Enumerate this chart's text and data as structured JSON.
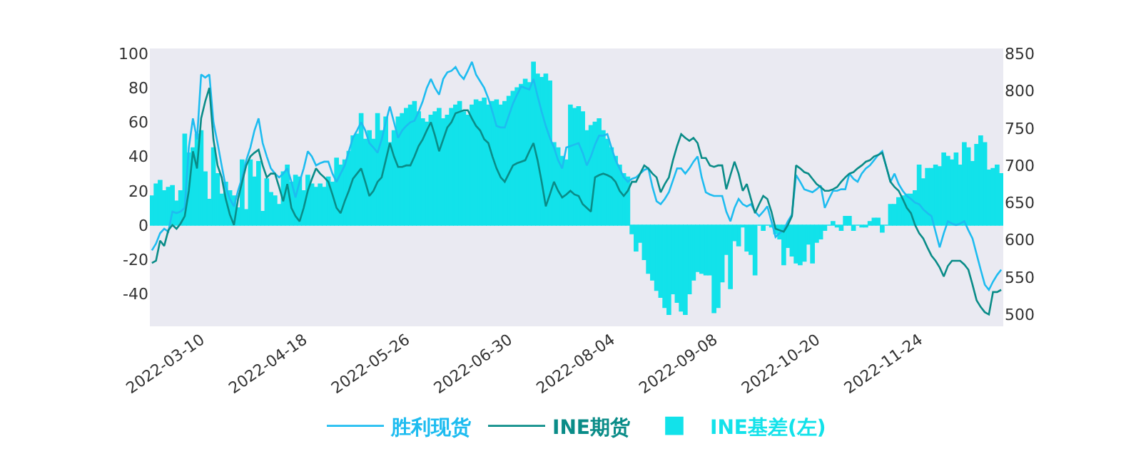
{
  "chart_data": {
    "type": "bar",
    "categories": [
      null,
      null,
      null,
      null,
      null,
      null,
      null,
      null,
      null,
      null,
      null,
      null,
      "2022-03-10",
      null,
      null,
      null,
      null,
      null,
      null,
      null,
      null,
      null,
      null,
      null,
      null,
      null,
      null,
      null,
      null,
      null,
      null,
      null,
      null,
      null,
      null,
      null,
      null,
      "2022-04-18",
      null,
      null,
      null,
      null,
      null,
      null,
      null,
      null,
      null,
      null,
      null,
      null,
      null,
      null,
      null,
      null,
      null,
      null,
      null,
      null,
      null,
      null,
      null,
      null,
      "2022-05-26",
      null,
      null,
      null,
      null,
      null,
      null,
      null,
      null,
      null,
      null,
      null,
      null,
      null,
      null,
      null,
      null,
      null,
      null,
      null,
      null,
      null,
      null,
      null,
      null,
      "2022-06-30",
      null,
      null,
      null,
      null,
      null,
      null,
      null,
      null,
      null,
      null,
      null,
      null,
      null,
      null,
      null,
      null,
      null,
      null,
      null,
      null,
      null,
      null,
      null,
      null,
      "2022-08-04",
      null,
      null,
      null,
      null,
      null,
      null,
      null,
      null,
      null,
      null,
      null,
      null,
      null,
      null,
      null,
      null,
      null,
      null,
      null,
      null,
      null,
      null,
      null,
      null,
      "2022-09-08",
      null,
      null,
      null,
      null,
      null,
      null,
      null,
      null,
      null,
      null,
      null,
      null,
      null,
      null,
      null,
      null,
      null,
      null,
      null,
      null,
      null,
      null,
      null,
      null,
      "2022-10-20",
      null,
      null,
      null,
      null,
      null,
      null,
      null,
      null,
      null,
      null,
      null,
      null,
      null,
      null,
      null,
      null,
      null,
      null,
      null,
      null,
      null,
      null,
      null,
      null,
      "2022-11-24",
      null,
      null,
      null,
      null,
      null,
      null,
      null,
      null,
      null,
      null,
      null,
      null,
      null,
      null,
      null,
      null,
      null,
      null,
      null,
      null
    ],
    "series": [
      {
        "name": "胜利现货",
        "type": "line",
        "axis": "y2",
        "color": "#1ebcf0",
        "values": [
          586,
          595,
          609,
          615,
          611,
          638,
          636,
          638,
          643,
          724,
          763,
          735,
          822,
          818,
          822,
          758,
          730,
          700,
          671,
          655,
          645,
          666,
          684,
          707,
          724,
          747,
          763,
          730,
          712,
          696,
          689,
          684,
          689,
          696,
          678,
          657,
          678,
          696,
          719,
          712,
          700,
          703,
          705,
          705,
          689,
          678,
          689,
          700,
          719,
          737,
          747,
          758,
          747,
          730,
          724,
          717,
          735,
          758,
          779,
          758,
          737,
          747,
          753,
          758,
          760,
          772,
          786,
          804,
          816,
          804,
          795,
          816,
          825,
          827,
          832,
          822,
          816,
          827,
          839,
          822,
          813,
          804,
          790,
          772,
          753,
          751,
          751,
          767,
          783,
          795,
          806,
          804,
          802,
          816,
          793,
          772,
          753,
          737,
          724,
          707,
          696,
          724,
          726,
          728,
          730,
          717,
          700,
          712,
          728,
          740,
          740,
          742,
          724,
          707,
          696,
          684,
          678,
          682,
          684,
          689,
          694,
          696,
          671,
          652,
          648,
          655,
          664,
          680,
          696,
          696,
          689,
          696,
          705,
          712,
          684,
          664,
          661,
          659,
          659,
          659,
          638,
          625,
          643,
          655,
          648,
          645,
          648,
          638,
          632,
          638,
          645,
          625,
          604,
          609,
          613,
          625,
          634,
          687,
          678,
          668,
          666,
          664,
          668,
          673,
          643,
          655,
          666,
          666,
          668,
          668,
          689,
          682,
          678,
          689,
          696,
          700,
          707,
          714,
          719,
          698,
          678,
          689,
          675,
          666,
          659,
          655,
          650,
          648,
          641,
          636,
          632,
          611,
          590,
          609,
          625,
          622,
          620,
          622,
          625,
          613,
          602,
          581,
          560,
          540,
          533,
          544,
          553,
          560
        ]
      },
      {
        "name": "INE期货",
        "type": "line",
        "axis": "y2",
        "color": "#0a8c88",
        "values": [
          569,
          572,
          599,
          592,
          613,
          620,
          615,
          622,
          632,
          666,
          719,
          696,
          763,
          786,
          804,
          735,
          700,
          684,
          655,
          634,
          620,
          655,
          678,
          700,
          712,
          717,
          721,
          700,
          684,
          689,
          689,
          671,
          652,
          675,
          643,
          632,
          625,
          643,
          666,
          682,
          696,
          689,
          684,
          678,
          661,
          643,
          636,
          652,
          666,
          682,
          689,
          696,
          678,
          659,
          666,
          678,
          684,
          707,
          730,
          712,
          698,
          698,
          700,
          700,
          712,
          726,
          735,
          747,
          758,
          740,
          719,
          735,
          751,
          758,
          770,
          772,
          774,
          774,
          763,
          753,
          747,
          735,
          730,
          712,
          696,
          684,
          678,
          689,
          700,
          703,
          705,
          707,
          719,
          730,
          707,
          678,
          645,
          661,
          678,
          666,
          657,
          661,
          666,
          661,
          659,
          648,
          643,
          638,
          684,
          687,
          689,
          687,
          684,
          678,
          666,
          659,
          666,
          678,
          678,
          689,
          700,
          696,
          689,
          684,
          664,
          675,
          684,
          707,
          726,
          742,
          737,
          733,
          737,
          730,
          710,
          710,
          700,
          698,
          700,
          700,
          668,
          687,
          705,
          689,
          666,
          675,
          655,
          636,
          648,
          659,
          655,
          638,
          615,
          613,
          611,
          620,
          632,
          700,
          696,
          691,
          689,
          682,
          675,
          671,
          666,
          666,
          668,
          671,
          678,
          684,
          689,
          691,
          696,
          700,
          705,
          707,
          712,
          714,
          717,
          698,
          678,
          671,
          666,
          655,
          643,
          636,
          620,
          609,
          602,
          590,
          579,
          572,
          563,
          551,
          565,
          572,
          572,
          572,
          567,
          560,
          540,
          519,
          510,
          503,
          500,
          530,
          530,
          533
        ]
      },
      {
        "name": "INE基差(左)",
        "type": "bar",
        "color": "#12e2ea",
        "values": [
          17,
          24,
          26,
          20,
          22,
          23,
          14,
          20,
          53,
          42,
          45,
          53,
          55,
          31,
          15,
          45,
          30,
          18,
          25,
          20,
          17,
          10,
          38,
          9,
          38,
          28,
          37,
          8,
          27,
          19,
          17,
          12,
          31,
          35,
          25,
          29,
          28,
          20,
          29,
          24,
          22,
          24,
          22,
          28,
          25,
          39,
          35,
          38,
          43,
          52,
          53,
          65,
          50,
          55,
          50,
          65,
          55,
          63,
          48,
          55,
          63,
          65,
          68,
          70,
          72,
          66,
          62,
          60,
          64,
          66,
          68,
          62,
          64,
          68,
          70,
          72,
          66,
          64,
          70,
          73,
          72,
          74,
          70,
          72,
          73,
          70,
          72,
          75,
          78,
          80,
          82,
          85,
          83,
          95,
          88,
          86,
          88,
          84,
          48,
          45,
          40,
          38,
          70,
          68,
          69,
          66,
          55,
          58,
          60,
          62,
          55,
          50,
          45,
          40,
          35,
          30,
          28,
          -5,
          -15,
          -10,
          -20,
          -28,
          -32,
          -38,
          -42,
          -48,
          -52,
          -40,
          -45,
          -50,
          -52,
          -40,
          -32,
          -27,
          -28,
          -29,
          -29,
          -51,
          -48,
          -33,
          -17,
          -37,
          -9,
          -12,
          -1,
          -15,
          -17,
          -29,
          0,
          -3,
          0,
          -1,
          -5,
          -8,
          -23,
          -13,
          -18,
          -22,
          -23,
          -21,
          -11,
          -22,
          -10,
          -8,
          -3,
          0,
          2,
          -1,
          -3,
          5,
          5,
          -3,
          0,
          -1,
          -1,
          2,
          4,
          4,
          -4,
          0,
          12,
          12,
          16,
          17,
          18,
          18,
          20,
          35,
          27,
          33,
          33,
          35,
          34,
          42,
          40,
          38,
          42,
          35,
          48,
          45,
          37,
          47,
          52,
          48,
          32,
          33,
          35,
          30
        ]
      }
    ],
    "ylim": [
      -59,
      103
    ],
    "yticks": [
      -40,
      -20,
      0,
      20,
      40,
      60,
      80,
      100
    ],
    "y2lim": [
      484,
      857
    ],
    "y2ticks": [
      500,
      550,
      600,
      650,
      700,
      750,
      800,
      850
    ],
    "legend": "bottom"
  }
}
